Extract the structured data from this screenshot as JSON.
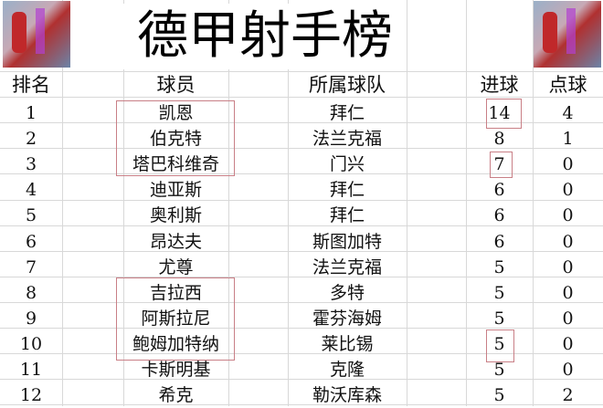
{
  "title": "德甲射手榜",
  "images": [
    "player-illustration",
    "player-illustration"
  ],
  "columns": {
    "rank": "排名",
    "player": "球员",
    "team": "所属球队",
    "goals": "进球",
    "penalties": "点球"
  },
  "rows": [
    {
      "rank": "1",
      "player": "凯恩",
      "team": "拜仁",
      "goals": "14",
      "penalties": "4"
    },
    {
      "rank": "2",
      "player": "伯克特",
      "team": "法兰克福",
      "goals": "8",
      "penalties": "1"
    },
    {
      "rank": "3",
      "player": "塔巴科维奇",
      "team": "门兴",
      "goals": "7",
      "penalties": "0"
    },
    {
      "rank": "4",
      "player": "迪亚斯",
      "team": "拜仁",
      "goals": "6",
      "penalties": "0"
    },
    {
      "rank": "5",
      "player": "奥利斯",
      "team": "拜仁",
      "goals": "6",
      "penalties": "0"
    },
    {
      "rank": "6",
      "player": "昂达夫",
      "team": "斯图加特",
      "goals": "6",
      "penalties": "0"
    },
    {
      "rank": "7",
      "player": "尤尊",
      "team": "法兰克福",
      "goals": "5",
      "penalties": "0"
    },
    {
      "rank": "8",
      "player": "吉拉西",
      "team": "多特",
      "goals": "5",
      "penalties": "0"
    },
    {
      "rank": "9",
      "player": "阿斯拉尼",
      "team": "霍芬海姆",
      "goals": "5",
      "penalties": "0"
    },
    {
      "rank": "10",
      "player": "鲍姆加特纳",
      "team": "莱比锡",
      "goals": "5",
      "penalties": "0"
    },
    {
      "rank": "11",
      "player": "卡斯明基",
      "team": "克隆",
      "goals": "5",
      "penalties": "0"
    },
    {
      "rank": "12",
      "player": "希克",
      "team": "勒沃库森",
      "goals": "5",
      "penalties": "2"
    }
  ],
  "highlight_color": "#c97f86"
}
